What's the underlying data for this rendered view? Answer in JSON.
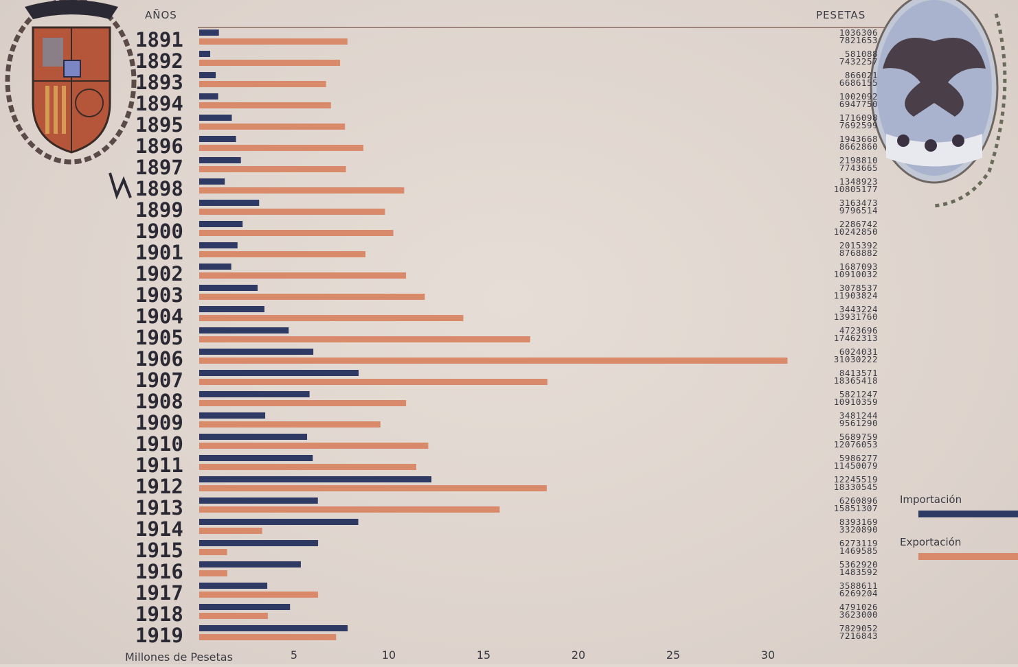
{
  "chart_data": {
    "type": "bar",
    "orientation": "horizontal",
    "year_header": "AÑOS",
    "value_header": "PESETAS",
    "xlabel": "Millones de Pesetas",
    "xticks": [
      5,
      10,
      15,
      20,
      25,
      30
    ],
    "xlim": [
      0,
      31.5
    ],
    "grid": false,
    "legend_position": "right",
    "colors": {
      "importacion": "#2e3a63",
      "exportacion": "#d98a6a",
      "background": "#e2d9d2",
      "text": "#2b2a34"
    },
    "categories": [
      "1891",
      "1892",
      "1893",
      "1894",
      "1895",
      "1896",
      "1897",
      "1898",
      "1899",
      "1900",
      "1901",
      "1902",
      "1903",
      "1904",
      "1905",
      "1906",
      "1907",
      "1908",
      "1909",
      "1910",
      "1911",
      "1912",
      "1913",
      "1914",
      "1915",
      "1916",
      "1917",
      "1918",
      "1919"
    ],
    "series": [
      {
        "name": "Importación",
        "labels": [
          "1036306",
          "581088",
          "866021",
          "1002092",
          "1716098",
          "1943668",
          "2198810",
          "1348923",
          "3163473",
          "2286742",
          "2015392",
          "1687093",
          "3078537",
          "3443224",
          "4723696",
          "6024031",
          "8413571",
          "5821247",
          "3481244",
          "5689759",
          "5986277",
          "12245519",
          "6260896",
          "8393169",
          "6273119",
          "5362920",
          "3588611",
          "4791026",
          "7829052"
        ],
        "values": [
          1.04,
          0.58,
          0.87,
          1.0,
          1.72,
          1.94,
          2.2,
          1.35,
          3.16,
          2.29,
          2.02,
          1.69,
          3.08,
          3.44,
          4.72,
          6.02,
          8.41,
          5.82,
          3.48,
          5.69,
          5.99,
          12.25,
          6.26,
          8.39,
          6.27,
          5.36,
          3.59,
          4.79,
          7.83
        ]
      },
      {
        "name": "Exportación",
        "labels": [
          "7821653",
          "7432257",
          "6686155",
          "6947750",
          "7692599",
          "8662860",
          "7743665",
          "10805177",
          "9796514",
          "10242850",
          "8768882",
          "10910032",
          "11903824",
          "13931760",
          "17462313",
          "31030222",
          "18365418",
          "10910359",
          "9561290",
          "12076053",
          "11450079",
          "18330545",
          "15851307",
          "3320890",
          "1469585",
          "1483592",
          "6269204",
          "3623000",
          "7216843"
        ],
        "values": [
          7.82,
          7.43,
          6.69,
          6.95,
          7.69,
          8.66,
          7.74,
          10.81,
          9.8,
          10.24,
          8.77,
          10.91,
          11.9,
          13.93,
          17.46,
          31.03,
          18.37,
          10.91,
          9.56,
          12.08,
          11.45,
          18.33,
          15.85,
          3.32,
          1.47,
          1.48,
          6.27,
          3.62,
          7.22
        ]
      }
    ]
  }
}
